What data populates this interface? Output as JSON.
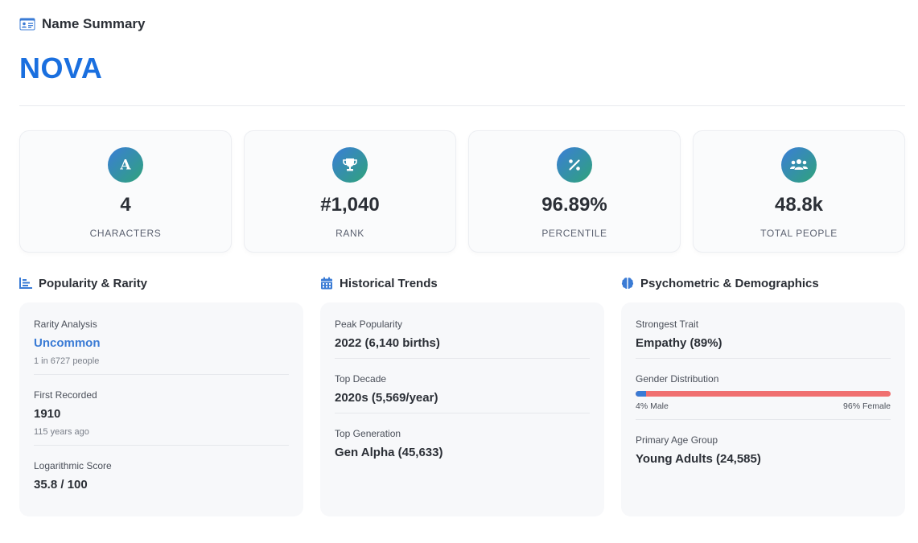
{
  "header": {
    "title": "Name Summary",
    "icon": "id-card-icon"
  },
  "name": "NOVA",
  "colors": {
    "accent": "#1a6fdf",
    "male": "#3a7bd5",
    "female": "#f07070"
  },
  "stats": [
    {
      "icon": "letter-a-icon",
      "value": "4",
      "label": "CHARACTERS"
    },
    {
      "icon": "trophy-icon",
      "value": "#1,040",
      "label": "RANK"
    },
    {
      "icon": "percent-icon",
      "value": "96.89%",
      "label": "PERCENTILE"
    },
    {
      "icon": "people-icon",
      "value": "48.8k",
      "label": "TOTAL PEOPLE"
    }
  ],
  "popularity": {
    "title": "Popularity & Rarity",
    "rarity_label": "Rarity Analysis",
    "rarity_value": "Uncommon",
    "rarity_sub": "1 in 6727 people",
    "first_label": "First Recorded",
    "first_value": "1910",
    "first_sub": "115 years ago",
    "log_label": "Logarithmic Score",
    "log_value": "35.8 / 100"
  },
  "historical": {
    "title": "Historical Trends",
    "peak_label": "Peak Popularity",
    "peak_value": "2022 (6,140 births)",
    "decade_label": "Top Decade",
    "decade_value": "2020s (5,569/year)",
    "generation_label": "Top Generation",
    "generation_value": "Gen Alpha (45,633)"
  },
  "psychometric": {
    "title": "Psychometric & Demographics",
    "trait_label": "Strongest Trait",
    "trait_value": "Empathy (89%)",
    "gender_label": "Gender Distribution",
    "male_percent": 4,
    "male_text": "4% Male",
    "female_text": "96% Female",
    "age_label": "Primary Age Group",
    "age_value": "Young Adults (24,585)"
  }
}
